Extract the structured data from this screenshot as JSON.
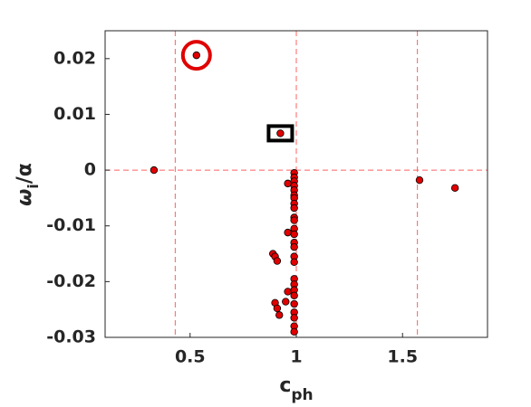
{
  "chart_data": {
    "type": "scatter",
    "x_label": {
      "main": "c",
      "sub": "ph"
    },
    "y_label": {
      "main": "ω",
      "sub": "i",
      "rest": "/α"
    },
    "xlim": [
      0.1,
      1.9
    ],
    "ylim": [
      -0.03,
      0.025
    ],
    "xticks": [
      0.5,
      1,
      1.5
    ],
    "yticks": [
      -0.03,
      -0.02,
      -0.01,
      0,
      0.01,
      0.02
    ],
    "grid": false,
    "color": "#e00000",
    "x": [
      0.33,
      0.53,
      0.925,
      1.58,
      1.747,
      0.96,
      0.96,
      0.89,
      0.9,
      0.91,
      0.96,
      0.95,
      0.9,
      0.91,
      0.92,
      0.99,
      0.99,
      0.99,
      0.99,
      0.99,
      0.99,
      0.99,
      0.99,
      0.99,
      0.99,
      0.99,
      0.99,
      0.99,
      0.99,
      0.99,
      0.99,
      0.99,
      0.99,
      0.99,
      0.99,
      0.99,
      0.99,
      0.99,
      0.99,
      0.99,
      0.99
    ],
    "y": [
      0.0,
      0.0206,
      0.0066,
      -0.0018,
      -0.0032,
      -0.0024,
      -0.0112,
      -0.015,
      -0.0155,
      -0.0163,
      -0.0218,
      -0.0236,
      -0.0238,
      -0.0248,
      -0.026,
      -0.0005,
      -0.0013,
      -0.002,
      -0.0028,
      -0.0036,
      -0.0045,
      -0.005,
      -0.006,
      -0.0068,
      -0.0085,
      -0.009,
      -0.0105,
      -0.0115,
      -0.013,
      -0.0138,
      -0.0155,
      -0.0165,
      -0.0195,
      -0.0205,
      -0.0215,
      -0.0225,
      -0.024,
      -0.0255,
      -0.0265,
      -0.028,
      -0.029
    ],
    "vlines": [
      0.43,
      1,
      1.57
    ],
    "hlines": [
      0
    ],
    "line_color": "#ff6060",
    "highlights": [
      {
        "shape": "circle",
        "x": 0.53,
        "y": 0.0206,
        "color": "#e00000"
      },
      {
        "shape": "square",
        "x": 0.925,
        "y": 0.0066,
        "color": "#000000"
      }
    ]
  }
}
